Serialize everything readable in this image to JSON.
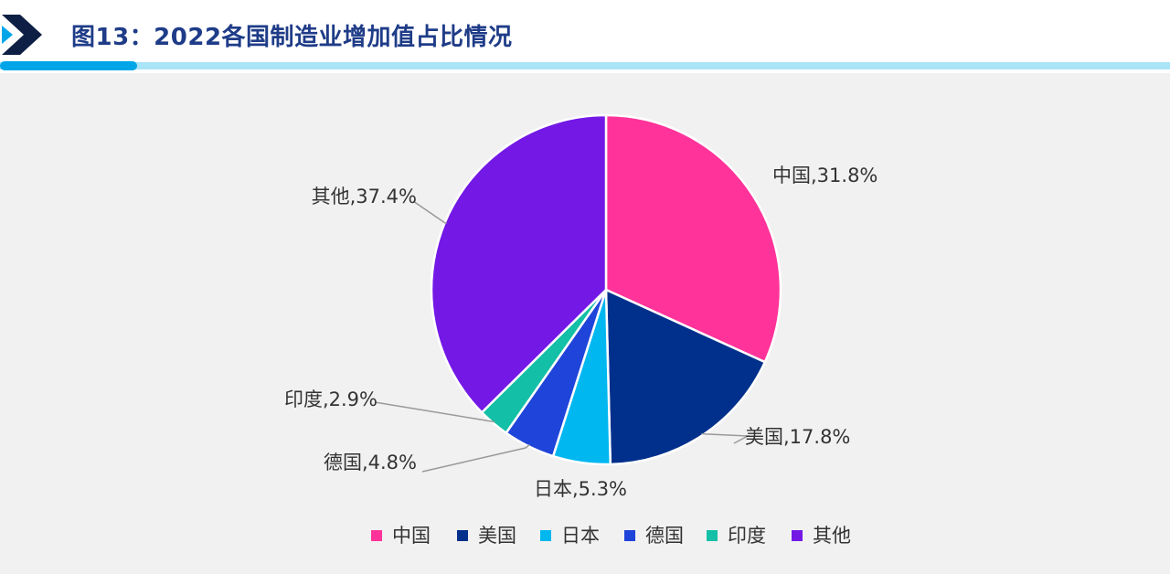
{
  "header": {
    "title": "图13：2022各国制造业增加值占比情况"
  },
  "colors": {
    "title": "#1f3c88",
    "accent_bar": "#00a6e8",
    "accent_bar_light": "#a9e4f7"
  },
  "chart_data": {
    "type": "pie",
    "categories": [
      "中国",
      "美国",
      "日本",
      "德国",
      "印度",
      "其他"
    ],
    "values": [
      31.8,
      17.8,
      5.3,
      4.8,
      2.9,
      37.4
    ],
    "unit": "%",
    "labels": [
      "中国,31.8%",
      "美国,17.8%",
      "日本,5.3%",
      "德国,4.8%",
      "印度,2.9%",
      "其他,37.4%"
    ],
    "colors": [
      "#ff3399",
      "#00308c",
      "#00b7f0",
      "#1f44d9",
      "#13bfa6",
      "#7418e6"
    ],
    "legend_position": "bottom",
    "start": "12 o'clock, clockwise"
  }
}
